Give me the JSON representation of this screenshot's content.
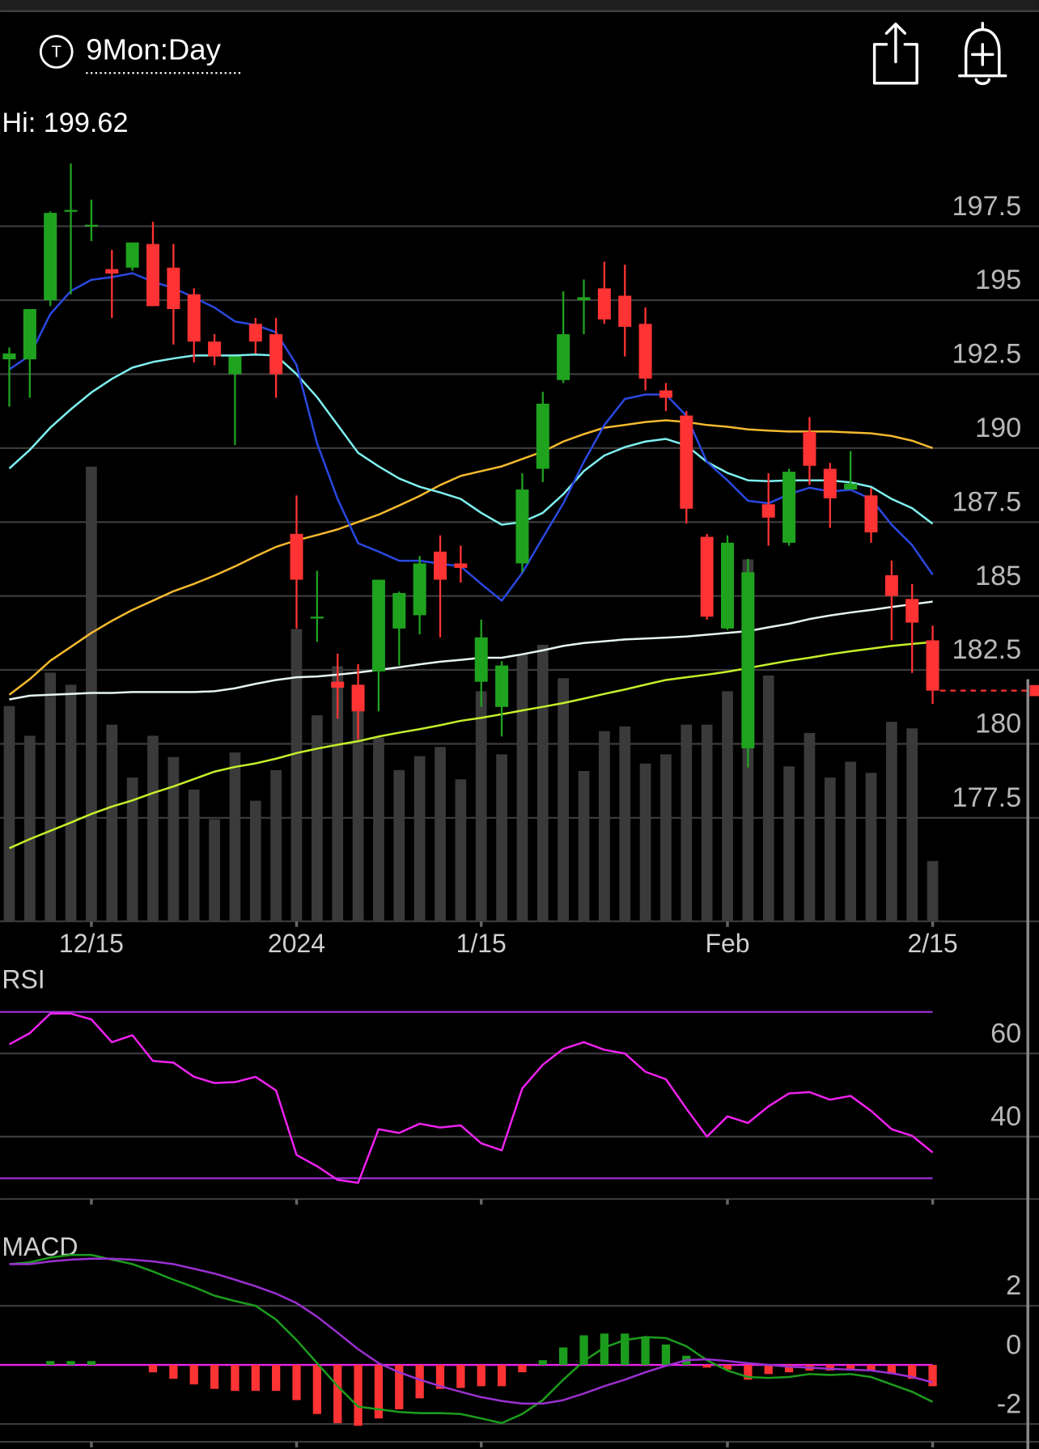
{
  "header": {
    "title": "9Mon:Day",
    "icon_letter": "T"
  },
  "hi_label": "Hi: 199.62",
  "chart_data": [
    {
      "type": "candlestick",
      "categories": [
        null,
        null,
        null,
        null,
        "12/15",
        null,
        null,
        null,
        null,
        null,
        null,
        null,
        null,
        null,
        "2024",
        null,
        null,
        null,
        null,
        null,
        null,
        null,
        null,
        "1/15",
        null,
        null,
        null,
        null,
        null,
        null,
        null,
        null,
        null,
        null,
        null,
        "Feb",
        null,
        null,
        null,
        null,
        null,
        null,
        null,
        null,
        null,
        "2/15"
      ],
      "open": [
        193.0,
        193.0,
        195.0,
        198.0,
        197.5,
        196.05,
        196.1,
        196.9,
        196.1,
        195.2,
        193.6,
        192.5,
        194.2,
        193.85,
        187.1,
        184.25,
        182.1,
        182.0,
        182.45,
        183.9,
        184.35,
        186.5,
        186.1,
        182.1,
        181.25,
        186.1,
        189.3,
        192.3,
        195.0,
        195.4,
        195.15,
        194.2,
        191.95,
        191.1,
        187.0,
        183.9,
        179.85,
        188.1,
        186.8,
        190.55,
        189.3,
        188.6,
        188.4,
        185.7,
        184.9,
        183.5
      ],
      "high": [
        193.4,
        194.7,
        198.0,
        199.62,
        198.4,
        196.7,
        196.95,
        197.65,
        196.9,
        195.4,
        193.85,
        193.1,
        194.4,
        194.4,
        188.4,
        185.85,
        183.05,
        182.7,
        185.55,
        185.15,
        186.35,
        187.05,
        186.7,
        184.2,
        182.8,
        189.15,
        191.9,
        195.3,
        195.7,
        196.3,
        196.2,
        194.75,
        192.2,
        191.25,
        187.1,
        187.05,
        186.25,
        189.15,
        189.3,
        191.05,
        189.5,
        189.9,
        188.65,
        186.2,
        185.4,
        184.0
      ],
      "low": [
        191.4,
        191.7,
        194.8,
        195.2,
        197.0,
        194.4,
        196.0,
        194.8,
        193.5,
        192.9,
        192.8,
        190.1,
        193.2,
        191.7,
        183.9,
        183.45,
        180.85,
        180.15,
        181.1,
        182.65,
        183.7,
        183.6,
        185.45,
        181.25,
        180.25,
        185.8,
        188.85,
        192.2,
        193.85,
        194.2,
        193.1,
        191.95,
        191.25,
        187.45,
        184.2,
        183.85,
        179.2,
        186.7,
        186.7,
        188.75,
        187.3,
        188.6,
        186.8,
        183.5,
        182.4,
        181.35
      ],
      "close": [
        193.2,
        194.7,
        197.95,
        198.05,
        197.55,
        195.9,
        196.95,
        194.8,
        194.7,
        193.6,
        193.1,
        193.1,
        193.6,
        192.5,
        185.55,
        184.3,
        181.9,
        181.1,
        185.55,
        185.1,
        186.1,
        185.55,
        185.95,
        183.6,
        182.65,
        188.6,
        191.5,
        193.85,
        195.1,
        194.35,
        194.1,
        192.35,
        191.7,
        187.95,
        184.3,
        186.8,
        185.8,
        187.65,
        189.2,
        189.4,
        188.3,
        188.8,
        187.15,
        185.0,
        184.1,
        181.8
      ],
      "up_color": "#1fa31f",
      "down_color": "#ff3333",
      "volume": {
        "color": "#3a3a3a",
        "values": [
          232,
          200,
          268,
          255,
          490,
          212,
          155,
          200,
          177,
          142,
          110,
          182,
          130,
          163,
          315,
          222,
          275,
          240,
          198,
          163,
          178,
          188,
          153,
          248,
          180,
          288,
          298,
          262,
          162,
          205,
          210,
          170,
          180,
          212,
          212,
          248,
          390,
          265,
          167,
          203,
          155,
          172,
          160,
          215,
          208,
          65
        ]
      },
      "series": [
        {
          "color": "#c6ef2a",
          "values": [
            176.47,
            176.78,
            177.06,
            177.34,
            177.63,
            177.88,
            178.09,
            178.34,
            178.56,
            178.81,
            179.06,
            179.22,
            179.34,
            179.5,
            179.69,
            179.84,
            179.97,
            180.09,
            180.25,
            180.38,
            180.5,
            180.63,
            180.78,
            180.88,
            181.0,
            181.13,
            181.25,
            181.38,
            181.53,
            181.69,
            181.84,
            182.0,
            182.16,
            182.25,
            182.34,
            182.44,
            182.56,
            182.69,
            182.81,
            182.91,
            183.03,
            183.13,
            183.22,
            183.31,
            183.38,
            183.44
          ]
        },
        {
          "color": "#e6f4f4",
          "values": [
            181.5,
            181.63,
            181.66,
            181.69,
            181.72,
            181.72,
            181.75,
            181.75,
            181.75,
            181.75,
            181.78,
            181.88,
            182.03,
            182.16,
            182.25,
            182.28,
            182.34,
            182.41,
            182.5,
            182.59,
            182.69,
            182.78,
            182.84,
            182.91,
            182.91,
            183.03,
            183.16,
            183.31,
            183.41,
            183.47,
            183.53,
            183.56,
            183.59,
            183.63,
            183.69,
            183.75,
            183.81,
            183.94,
            184.06,
            184.22,
            184.34,
            184.44,
            184.53,
            184.63,
            184.72,
            184.81
          ]
        },
        {
          "color": "#f4b92e",
          "values": [
            181.66,
            182.19,
            182.81,
            183.28,
            183.75,
            184.16,
            184.53,
            184.84,
            185.16,
            185.41,
            185.69,
            186.0,
            186.34,
            186.66,
            186.88,
            187.06,
            187.25,
            187.5,
            187.75,
            188.06,
            188.38,
            188.75,
            189.06,
            189.22,
            189.38,
            189.63,
            189.88,
            190.22,
            190.47,
            190.69,
            190.78,
            190.88,
            190.94,
            190.88,
            190.78,
            190.72,
            190.63,
            190.59,
            190.56,
            190.56,
            190.56,
            190.53,
            190.5,
            190.41,
            190.25,
            190.0
          ]
        },
        {
          "color": "#7ff0f0",
          "values": [
            189.31,
            189.94,
            190.69,
            191.31,
            191.88,
            192.34,
            192.72,
            192.91,
            193.03,
            193.13,
            193.13,
            193.13,
            193.16,
            193.13,
            192.5,
            191.72,
            190.78,
            189.84,
            189.38,
            188.97,
            188.69,
            188.5,
            188.28,
            187.81,
            187.41,
            187.5,
            187.81,
            188.44,
            189.22,
            189.75,
            190.03,
            190.22,
            190.31,
            190.09,
            189.53,
            189.16,
            188.91,
            188.88,
            188.91,
            188.91,
            188.91,
            188.84,
            188.69,
            188.28,
            187.97,
            187.44
          ]
        },
        {
          "color": "#2a48e0",
          "values": [
            192.66,
            193.13,
            194.53,
            195.31,
            195.69,
            195.78,
            195.91,
            195.63,
            195.41,
            195.09,
            194.75,
            194.28,
            194.16,
            193.91,
            192.81,
            190.16,
            188.28,
            186.78,
            186.5,
            186.19,
            186.19,
            186.09,
            186.0,
            185.41,
            184.84,
            185.78,
            186.97,
            188.13,
            189.53,
            190.78,
            191.66,
            191.81,
            191.81,
            191.09,
            189.53,
            188.91,
            188.22,
            188.13,
            188.44,
            188.66,
            188.53,
            188.59,
            188.28,
            187.41,
            186.72,
            185.72
          ]
        }
      ],
      "ylim": [
        174,
        200.15
      ],
      "yticks": [
        177.5,
        180,
        182.5,
        185,
        187.5,
        190,
        192.5,
        195,
        197.5
      ],
      "grid": true,
      "grid_color": "#3a3a3a",
      "last_price_color": "#ff3333"
    },
    {
      "type": "line",
      "title": "RSI",
      "series": [
        {
          "color": "#ee22ee",
          "values": [
            62.2,
            64.9,
            69.6,
            69.6,
            68.2,
            62.7,
            64.4,
            58.2,
            57.8,
            54.4,
            52.9,
            53.1,
            54.4,
            51.1,
            35.6,
            32.9,
            29.6,
            28.9,
            41.8,
            40.9,
            43.1,
            42.2,
            42.7,
            38.4,
            36.7,
            51.6,
            57.3,
            61.1,
            62.7,
            60.9,
            60,
            55.6,
            53.8,
            46.7,
            40,
            44.9,
            43.3,
            47.3,
            50.4,
            50.7,
            48.9,
            49.8,
            46.2,
            41.8,
            40.2,
            36.2
          ]
        }
      ],
      "reference_lines": [
        70,
        30
      ],
      "reference_color": "#9a30d0",
      "ylim": [
        25,
        80
      ],
      "yticks": [
        40,
        60
      ],
      "grid": true,
      "grid_color": "#3a3a3a"
    },
    {
      "type": "macd",
      "title": "MACD",
      "series": [
        {
          "color": "#1c9c1c",
          "values": [
            3.41,
            3.47,
            3.63,
            3.72,
            3.72,
            3.56,
            3.41,
            3.16,
            2.88,
            2.63,
            2.34,
            2.16,
            2.0,
            1.53,
            0.84,
            0.06,
            -0.72,
            -1.41,
            -1.5,
            -1.59,
            -1.63,
            -1.63,
            -1.66,
            -1.81,
            -1.97,
            -1.66,
            -1.19,
            -0.5,
            0.13,
            0.59,
            0.84,
            0.94,
            0.91,
            0.63,
            0.16,
            -0.19,
            -0.41,
            -0.44,
            -0.41,
            -0.31,
            -0.34,
            -0.31,
            -0.41,
            -0.66,
            -0.91,
            -1.25
          ]
        },
        {
          "color": "#9a30d0",
          "values": [
            3.41,
            3.41,
            3.5,
            3.56,
            3.59,
            3.59,
            3.56,
            3.5,
            3.41,
            3.25,
            3.09,
            2.88,
            2.66,
            2.41,
            2.09,
            1.63,
            1.09,
            0.53,
            0.06,
            -0.25,
            -0.5,
            -0.72,
            -0.91,
            -1.09,
            -1.22,
            -1.31,
            -1.31,
            -1.19,
            -0.97,
            -0.72,
            -0.5,
            -0.25,
            -0.03,
            0.16,
            0.19,
            0.13,
            0.06,
            0,
            -0.06,
            -0.09,
            -0.13,
            -0.16,
            -0.19,
            -0.28,
            -0.41,
            -0.59
          ]
        }
      ],
      "histogram": {
        "up_color": "#1c9c1c",
        "down_color": "#ff3333",
        "values": [
          0,
          0,
          0.13,
          0.13,
          0.13,
          0,
          0,
          -0.25,
          -0.47,
          -0.66,
          -0.81,
          -0.88,
          -0.88,
          -0.88,
          -1.19,
          -1.66,
          -1.97,
          -2.06,
          -1.81,
          -1.5,
          -1.13,
          -0.81,
          -0.78,
          -0.72,
          -0.72,
          -0.25,
          0.16,
          0.59,
          1.0,
          1.06,
          1.06,
          0.94,
          0.69,
          0.31,
          -0.09,
          -0.16,
          -0.5,
          -0.31,
          -0.25,
          -0.19,
          -0.19,
          -0.16,
          -0.19,
          -0.31,
          -0.47,
          -0.72
        ]
      },
      "zero_line_color": "#ee22ee",
      "ylim": [
        -2.6,
        4.3
      ],
      "yticks": [
        -2,
        0,
        2
      ],
      "grid": true,
      "grid_color": "#3a3a3a"
    }
  ]
}
